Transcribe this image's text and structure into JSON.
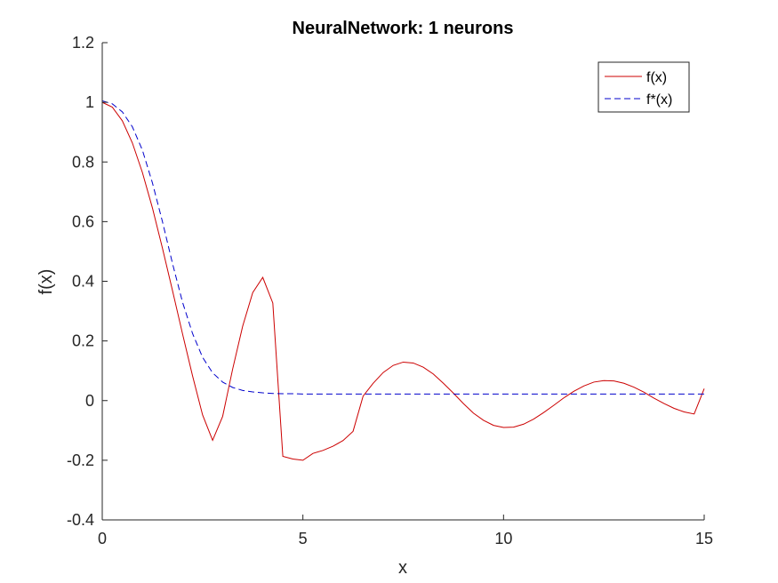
{
  "chart_data": {
    "type": "line",
    "title": "NeuralNetwork:  1 neurons",
    "xlabel": "x",
    "ylabel": "f(x)",
    "xlim": [
      0,
      15
    ],
    "ylim": [
      -0.4,
      1.2
    ],
    "xticks": [
      0,
      5,
      10,
      15
    ],
    "yticks": [
      -0.4,
      -0.2,
      0,
      0.2,
      0.4,
      0.6,
      0.8,
      1,
      1.2
    ],
    "xtick_labels": [
      "0",
      "5",
      "10",
      "15"
    ],
    "ytick_labels": [
      "-0.4",
      "-0.2",
      "0",
      "0.2",
      "0.4",
      "0.6",
      "0.8",
      "1",
      "1.2"
    ],
    "grid": false,
    "legend_position": "top-right",
    "series": [
      {
        "name": "f(x)",
        "color": "#cc0000",
        "style": "solid",
        "x": [
          0,
          0.25,
          0.5,
          0.75,
          1,
          1.25,
          1.5,
          1.75,
          2,
          2.25,
          2.5,
          2.75,
          3,
          3.25,
          3.5,
          3.75,
          4,
          4.25,
          4.5,
          4.75,
          5,
          5.25,
          5.5,
          5.75,
          6,
          6.25,
          6.5,
          6.75,
          7,
          7.25,
          7.5,
          7.75,
          8,
          8.25,
          8.5,
          8.75,
          9,
          9.25,
          9.5,
          9.75,
          10,
          10.25,
          10.5,
          10.75,
          11,
          11.25,
          11.5,
          11.75,
          12,
          12.25,
          12.5,
          12.75,
          13,
          13.25,
          13.5,
          13.75,
          14,
          14.25,
          14.5,
          14.75,
          15
        ],
        "y": [
          1,
          0.984,
          0.938,
          0.864,
          0.765,
          0.646,
          0.511,
          0.369,
          0.224,
          0.083,
          -0.048,
          -0.133,
          -0.053,
          0.106,
          0.25,
          0.362,
          0.413,
          0.327,
          -0.187,
          -0.196,
          -0.2,
          -0.177,
          -0.167,
          -0.153,
          -0.134,
          -0.103,
          0.015,
          0.058,
          0.094,
          0.118,
          0.129,
          0.126,
          0.112,
          0.089,
          0.058,
          0.025,
          -0.01,
          -0.042,
          -0.066,
          -0.083,
          -0.09,
          -0.089,
          -0.079,
          -0.062,
          -0.04,
          -0.016,
          0.009,
          0.031,
          0.049,
          0.062,
          0.067,
          0.066,
          0.058,
          0.045,
          0.028,
          0.008,
          -0.01,
          -0.026,
          -0.038,
          -0.045,
          0.04
        ]
      },
      {
        "name": "f*(x)",
        "color": "#0000cc",
        "style": "dashed",
        "x": [
          0,
          0.25,
          0.5,
          0.75,
          1,
          1.25,
          1.5,
          1.75,
          2,
          2.25,
          2.5,
          2.75,
          3,
          3.25,
          3.5,
          3.75,
          4,
          4.25,
          4.5,
          4.75,
          5,
          5.5,
          6,
          6.5,
          7,
          8,
          9,
          10,
          11,
          12,
          13,
          14,
          15
        ],
        "y": [
          1.005,
          0.995,
          0.968,
          0.918,
          0.84,
          0.73,
          0.6,
          0.46,
          0.33,
          0.225,
          0.145,
          0.093,
          0.062,
          0.044,
          0.034,
          0.029,
          0.026,
          0.024,
          0.023,
          0.023,
          0.022,
          0.022,
          0.022,
          0.022,
          0.022,
          0.022,
          0.022,
          0.022,
          0.022,
          0.022,
          0.022,
          0.022,
          0.022
        ]
      }
    ]
  }
}
